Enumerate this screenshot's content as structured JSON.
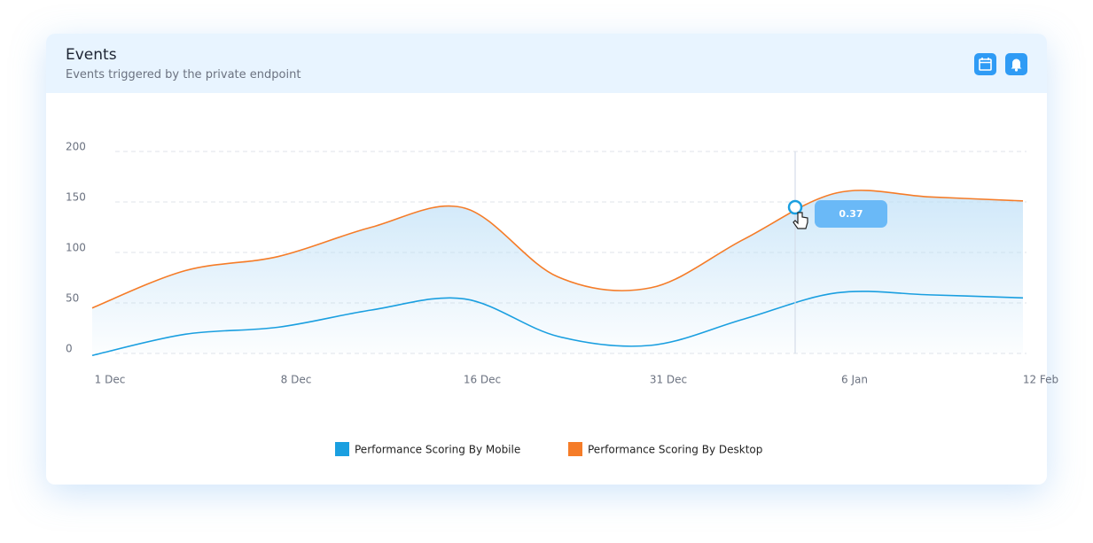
{
  "header": {
    "title": "Events",
    "subtitle": "Events triggered by the private endpoint"
  },
  "chart_data": {
    "type": "line",
    "categories": [
      "1 Dec",
      null,
      "8 Dec",
      null,
      "16 Dec",
      null,
      "31 Dec",
      null,
      "6 Jan",
      null,
      "12 Feb"
    ],
    "series": [
      {
        "name": "Performance Scoring By Mobile",
        "color": "#1a9fe0",
        "values": [
          -2,
          19,
          26,
          43,
          54,
          17,
          8,
          34,
          60,
          58,
          55
        ]
      },
      {
        "name": "Performance Scoring By Desktop",
        "color": "#f57c28",
        "values": [
          45,
          82,
          96,
          125,
          144,
          76,
          65,
          113,
          159,
          155,
          151
        ]
      }
    ],
    "ylim": [
      0,
      200
    ],
    "yticks": [
      0,
      50,
      100,
      150,
      200
    ],
    "grid": true,
    "area_fill": "#bfe0f7",
    "tooltip": "0.37"
  }
}
